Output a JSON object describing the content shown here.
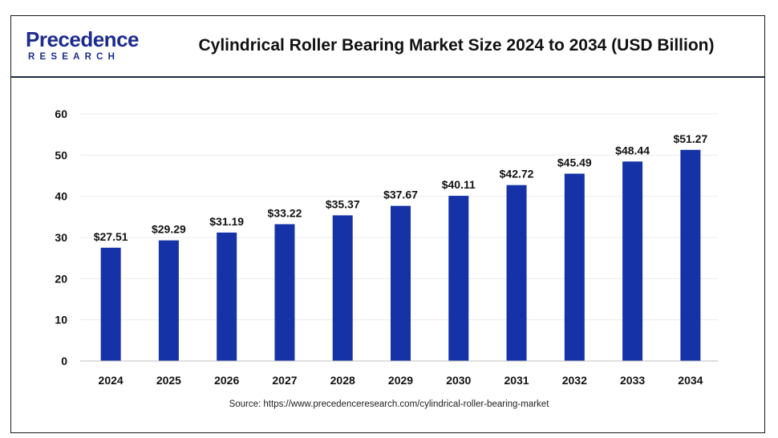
{
  "header": {
    "logo_main": "Precedence",
    "logo_sub": "RESEARCH",
    "title": "Cylindrical Roller Bearing Market Size 2024 to 2034 (USD Billion)"
  },
  "footer": {
    "source": "Source: https://www.precedenceresearch.com/cylindrical-roller-bearing-market"
  },
  "colors": {
    "bar": "#1533a6",
    "brand": "#1d2b8f"
  },
  "chart_data": {
    "type": "bar",
    "title": "Cylindrical Roller Bearing Market Size 2024 to 2034 (USD Billion)",
    "categories": [
      "2024",
      "2025",
      "2026",
      "2027",
      "2028",
      "2029",
      "2030",
      "2031",
      "2032",
      "2033",
      "2034"
    ],
    "values": [
      27.51,
      29.29,
      31.19,
      33.22,
      35.37,
      37.67,
      40.11,
      42.72,
      45.49,
      48.44,
      51.27
    ],
    "data_labels": [
      "$27.51",
      "$29.29",
      "$31.19",
      "$33.22",
      "$35.37",
      "$37.67",
      "$40.11",
      "$42.72",
      "$45.49",
      "$48.44",
      "$51.27"
    ],
    "yticks": [
      "0",
      "10",
      "20",
      "30",
      "40",
      "50",
      "60"
    ],
    "ylim": [
      0,
      60
    ],
    "xlabel": "",
    "ylabel": "",
    "grid": true,
    "legend": "none"
  }
}
